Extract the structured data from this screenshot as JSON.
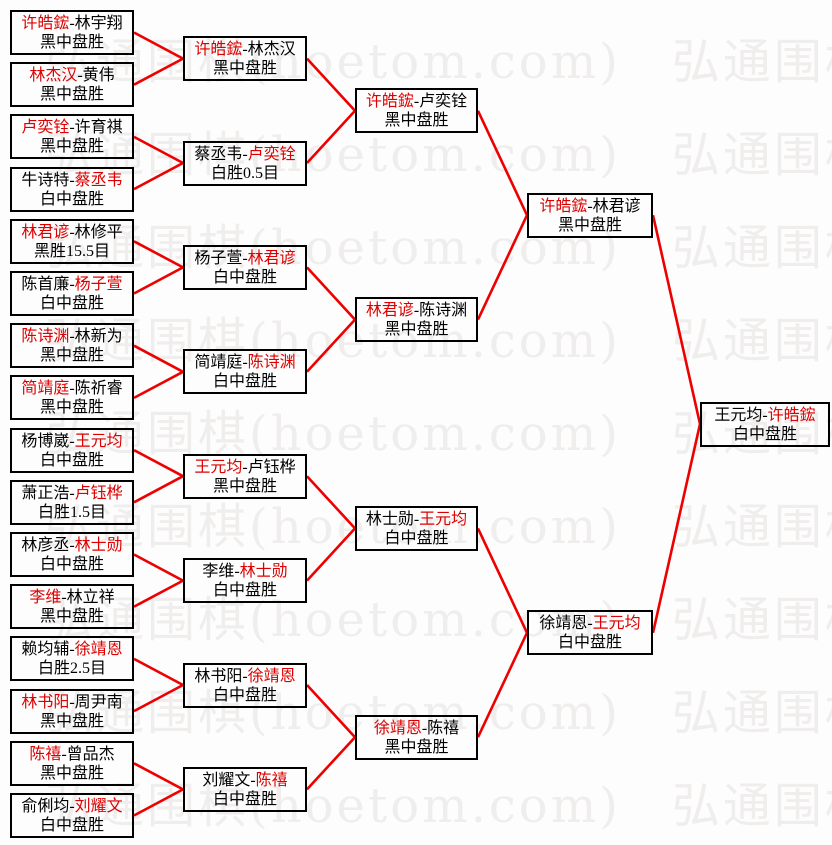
{
  "colors": {
    "winner_red": "#dd0000",
    "line_red": "#ee0000",
    "text_black": "#000000",
    "box_border": "#000000",
    "watermark_gray": "#f0eded",
    "background": "#fdfdfd"
  },
  "watermark": {
    "text": "弘通围棋(hoetom.com)"
  },
  "bracket": {
    "separator": "-",
    "rounds": [
      {
        "matches": [
          {
            "players": [
              "许皓鋐",
              "林宇翔"
            ],
            "winner": 0,
            "result": "黑中盘胜"
          },
          {
            "players": [
              "林杰汉",
              "黄伟"
            ],
            "winner": 0,
            "result": "黑中盘胜"
          },
          {
            "players": [
              "卢奕铨",
              "许育祺"
            ],
            "winner": 0,
            "result": "黑中盘胜"
          },
          {
            "players": [
              "牛诗特",
              "蔡丞韦"
            ],
            "winner": 1,
            "result": "白中盘胜"
          },
          {
            "players": [
              "林君谚",
              "林修平"
            ],
            "winner": 0,
            "result": "黑胜15.5目"
          },
          {
            "players": [
              "陈首廉",
              "杨子萱"
            ],
            "winner": 1,
            "result": "白中盘胜"
          },
          {
            "players": [
              "陈诗渊",
              "林新为"
            ],
            "winner": 0,
            "result": "黑中盘胜"
          },
          {
            "players": [
              "简靖庭",
              "陈祈睿"
            ],
            "winner": 0,
            "result": "黑中盘胜"
          },
          {
            "players": [
              "杨博崴",
              "王元均"
            ],
            "winner": 1,
            "result": "白中盘胜"
          },
          {
            "players": [
              "萧正浩",
              "卢钰桦"
            ],
            "winner": 1,
            "result": "白胜1.5目"
          },
          {
            "players": [
              "林彦丞",
              "林士勋"
            ],
            "winner": 1,
            "result": "白中盘胜"
          },
          {
            "players": [
              "李维",
              "林立祥"
            ],
            "winner": 0,
            "result": "黑中盘胜"
          },
          {
            "players": [
              "赖均辅",
              "徐靖恩"
            ],
            "winner": 1,
            "result": "白胜2.5目"
          },
          {
            "players": [
              "林书阳",
              "周尹南"
            ],
            "winner": 0,
            "result": "黑中盘胜"
          },
          {
            "players": [
              "陈禧",
              "曾品杰"
            ],
            "winner": 0,
            "result": "黑中盘胜"
          },
          {
            "players": [
              "俞俐均",
              "刘耀文"
            ],
            "winner": 1,
            "result": "白中盘胜"
          }
        ]
      },
      {
        "matches": [
          {
            "players": [
              "许皓鋐",
              "林杰汉"
            ],
            "winner": 0,
            "result": "黑中盘胜"
          },
          {
            "players": [
              "蔡丞韦",
              "卢奕铨"
            ],
            "winner": 1,
            "result": "白胜0.5目"
          },
          {
            "players": [
              "杨子萱",
              "林君谚"
            ],
            "winner": 1,
            "result": "白中盘胜"
          },
          {
            "players": [
              "简靖庭",
              "陈诗渊"
            ],
            "winner": 1,
            "result": "白中盘胜"
          },
          {
            "players": [
              "王元均",
              "卢钰桦"
            ],
            "winner": 0,
            "result": "黑中盘胜"
          },
          {
            "players": [
              "李维",
              "林士勋"
            ],
            "winner": 1,
            "result": "白中盘胜"
          },
          {
            "players": [
              "林书阳",
              "徐靖恩"
            ],
            "winner": 1,
            "result": "白中盘胜"
          },
          {
            "players": [
              "刘耀文",
              "陈禧"
            ],
            "winner": 1,
            "result": "白中盘胜"
          }
        ]
      },
      {
        "matches": [
          {
            "players": [
              "许皓鋐",
              "卢奕铨"
            ],
            "winner": 0,
            "result": "黑中盘胜"
          },
          {
            "players": [
              "林君谚",
              "陈诗渊"
            ],
            "winner": 0,
            "result": "黑中盘胜"
          },
          {
            "players": [
              "林士勋",
              "王元均"
            ],
            "winner": 1,
            "result": "白中盘胜"
          },
          {
            "players": [
              "徐靖恩",
              "陈禧"
            ],
            "winner": 0,
            "result": "黑中盘胜"
          }
        ]
      },
      {
        "matches": [
          {
            "players": [
              "许皓鋐",
              "林君谚"
            ],
            "winner": 0,
            "result": "黑中盘胜"
          },
          {
            "players": [
              "徐靖恩",
              "王元均"
            ],
            "winner": 1,
            "result": "白中盘胜"
          }
        ]
      },
      {
        "matches": [
          {
            "players": [
              "王元均",
              "许皓鋐"
            ],
            "winner": 1,
            "result": "白中盘胜"
          }
        ]
      }
    ]
  }
}
